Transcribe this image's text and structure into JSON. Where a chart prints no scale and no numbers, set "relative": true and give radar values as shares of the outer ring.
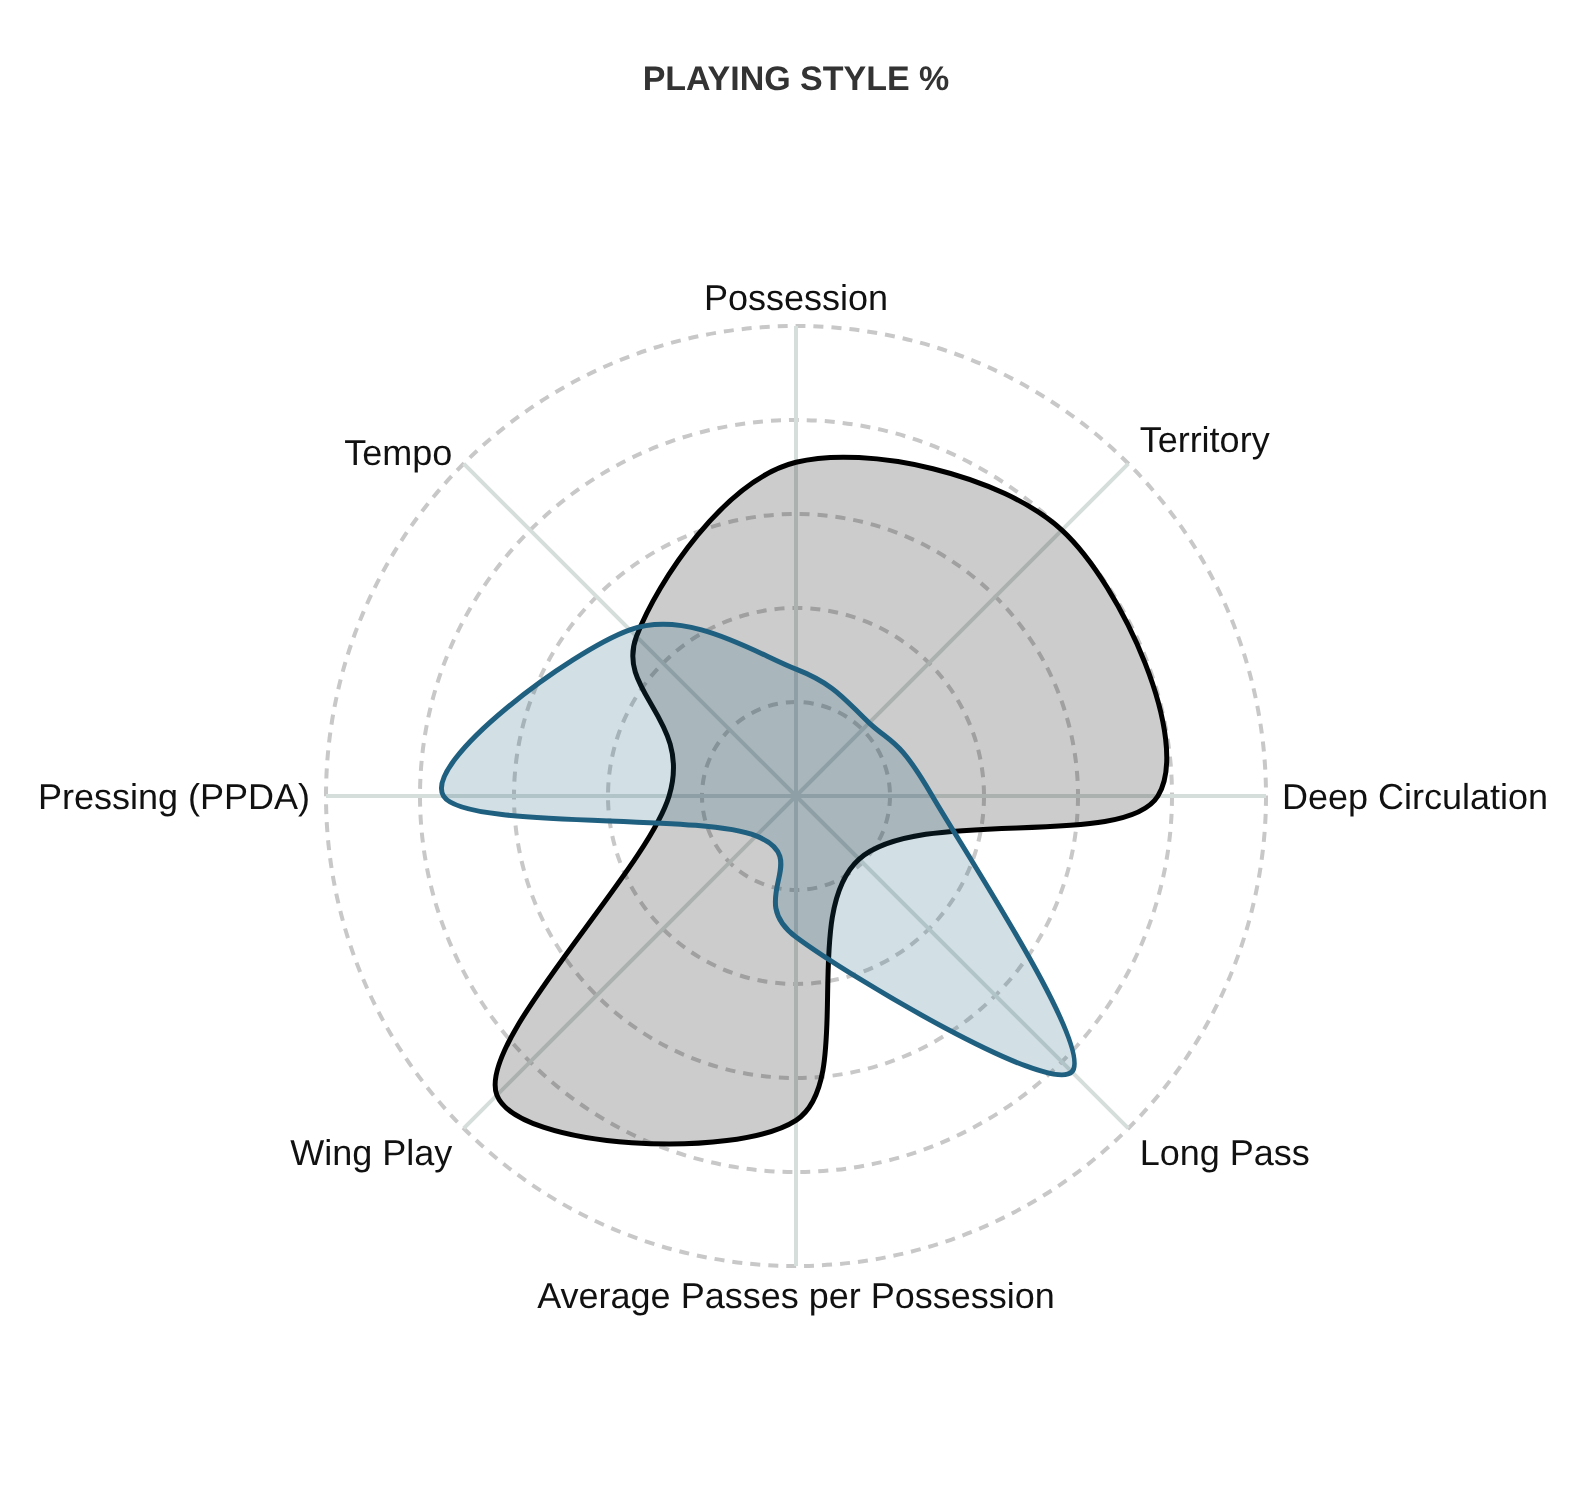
{
  "chart_data": {
    "type": "radar",
    "title": "PLAYING STYLE %",
    "categories": [
      "Possession",
      "Territory",
      "Deep Circulation",
      "Long Pass",
      "Average Passes per Possession",
      "Wing Play",
      "Pressing (PPDA)",
      "Tempo"
    ],
    "relative": true,
    "grid": true,
    "series": [
      {
        "color": "#000000",
        "values": [
          0.71,
          0.8,
          0.77,
          0.19,
          0.69,
          0.9,
          0.27,
          0.48
        ]
      },
      {
        "color": "#1f5f7f",
        "values": [
          0.27,
          0.22,
          0.29,
          0.83,
          0.3,
          0.12,
          0.75,
          0.5
        ]
      }
    ]
  }
}
